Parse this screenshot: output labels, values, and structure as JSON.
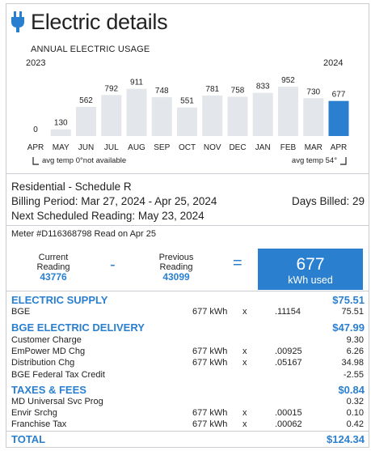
{
  "header": {
    "title": "Electric details",
    "icon": "plug-icon"
  },
  "chart_data": {
    "type": "bar",
    "title": "ANNUAL ELECTRIC USAGE",
    "year_start": "2023",
    "year_end": "2024",
    "categories": [
      "APR",
      "MAY",
      "JUN",
      "JUL",
      "AUG",
      "SEP",
      "OCT",
      "NOV",
      "DEC",
      "JAN",
      "FEB",
      "MAR",
      "APR"
    ],
    "values": [
      0,
      130,
      562,
      792,
      911,
      748,
      551,
      781,
      758,
      833,
      952,
      730,
      677
    ],
    "ylim": [
      0,
      1000
    ],
    "bar_color": "#e3e6ea",
    "highlight_color": "#2b7fcf",
    "highlight_index": 12,
    "footnote_left": "avg temp 0°not available",
    "footnote_right": "avg temp 54°"
  },
  "account": {
    "schedule": "Residential - Schedule R",
    "billing_period": "Billing Period: Mar 27, 2024 - Apr 25, 2024",
    "days_billed": "Days Billed: 29",
    "next_reading": "Next Scheduled Reading: May 23, 2024"
  },
  "meter": {
    "text": "Meter #D116368798  Read on Apr 25"
  },
  "reading": {
    "current_label_1": "Current",
    "current_label_2": "Reading",
    "current_value": "43776",
    "minus": "-",
    "previous_label_1": "Previous",
    "previous_label_2": "Reading",
    "previous_value": "43099",
    "equals": "=",
    "used_value": "677",
    "used_label": "kWh used"
  },
  "sections": {
    "supply": {
      "title": "ELECTRIC SUPPLY",
      "amount": "$75.51"
    },
    "delivery": {
      "title": "BGE ELECTRIC DELIVERY",
      "amount": "$47.99"
    },
    "taxes": {
      "title": "TAXES & FEES",
      "amount": "$0.84"
    },
    "total": {
      "title": "TOTAL",
      "amount": "$124.34"
    }
  },
  "lines": {
    "bge": {
      "name": "BGE",
      "qty": "677 kWh",
      "x": "x",
      "rate": ".11154",
      "amt": "75.51"
    },
    "customer": {
      "name": "Customer Charge",
      "amt": "9.30"
    },
    "empower": {
      "name": "EmPower MD Chg",
      "qty": "677 kWh",
      "x": "x",
      "rate": ".00925",
      "amt": "6.26"
    },
    "distribution": {
      "name": "Distribution Chg",
      "qty": "677 kWh",
      "x": "x",
      "rate": ".05167",
      "amt": "34.98"
    },
    "fedtax": {
      "name": "BGE Federal Tax Credit",
      "amt": "-2.55"
    },
    "universal": {
      "name": "MD Universal Svc Prog",
      "amt": "0.32"
    },
    "envir": {
      "name": "Envir Srchg",
      "qty": "677 kWh",
      "x": "x",
      "rate": ".00015",
      "amt": "0.10"
    },
    "franchise": {
      "name": "Franchise Tax",
      "qty": "677 kWh",
      "x": "x",
      "rate": ".00062",
      "amt": "0.42"
    }
  }
}
